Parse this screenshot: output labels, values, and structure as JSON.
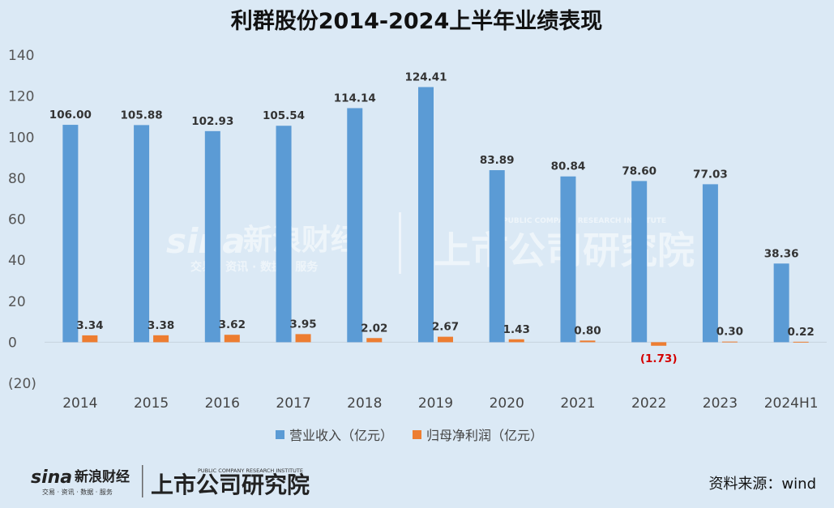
{
  "title": "利群股份2014-2024上半年业绩表现",
  "source": "资料来源：wind",
  "watermark": {
    "brand": "sina",
    "brand_cn": "新浪财经",
    "tagline": "交易 · 资讯 · 数据 · 服务",
    "institute_cn": "上市公司研究院",
    "institute_en": "PUBLIC COMPANY RESEARCH INSTITUTE"
  },
  "colors": {
    "revenue": "#5b9bd5",
    "profit": "#ed7d31",
    "negative_label": "#d40000",
    "background": "#dbe9f5"
  },
  "chart_data": {
    "type": "bar",
    "title": "利群股份2014-2024上半年业绩表现",
    "categories": [
      "2014",
      "2015",
      "2016",
      "2017",
      "2018",
      "2019",
      "2020",
      "2021",
      "2022",
      "2023",
      "2024H1"
    ],
    "series": [
      {
        "name": "营业收入（亿元）",
        "values": [
          106.0,
          105.88,
          102.93,
          105.54,
          114.14,
          124.41,
          83.89,
          80.84,
          78.6,
          77.03,
          38.36
        ],
        "labels": [
          "106.00",
          "105.88",
          "102.93",
          "105.54",
          "114.14",
          "124.41",
          "83.89",
          "80.84",
          "78.60",
          "77.03",
          "38.36"
        ]
      },
      {
        "name": "归母净利润（亿元）",
        "values": [
          3.34,
          3.38,
          3.62,
          3.95,
          2.02,
          2.67,
          1.43,
          0.8,
          -1.73,
          0.3,
          0.22
        ],
        "labels": [
          "3.34",
          "3.38",
          "3.62",
          "3.95",
          "2.02",
          "2.67",
          "1.43",
          "0.80",
          "(1.73)",
          "0.30",
          "0.22"
        ]
      }
    ],
    "ylim": [
      -20,
      140
    ],
    "yticks": [
      140,
      120,
      100,
      80,
      60,
      40,
      20,
      0,
      -20
    ],
    "ytick_labels": [
      "140",
      "120",
      "100",
      "80",
      "60",
      "40",
      "20",
      "0",
      "(20)"
    ],
    "legend_position": "bottom",
    "grid": false
  }
}
